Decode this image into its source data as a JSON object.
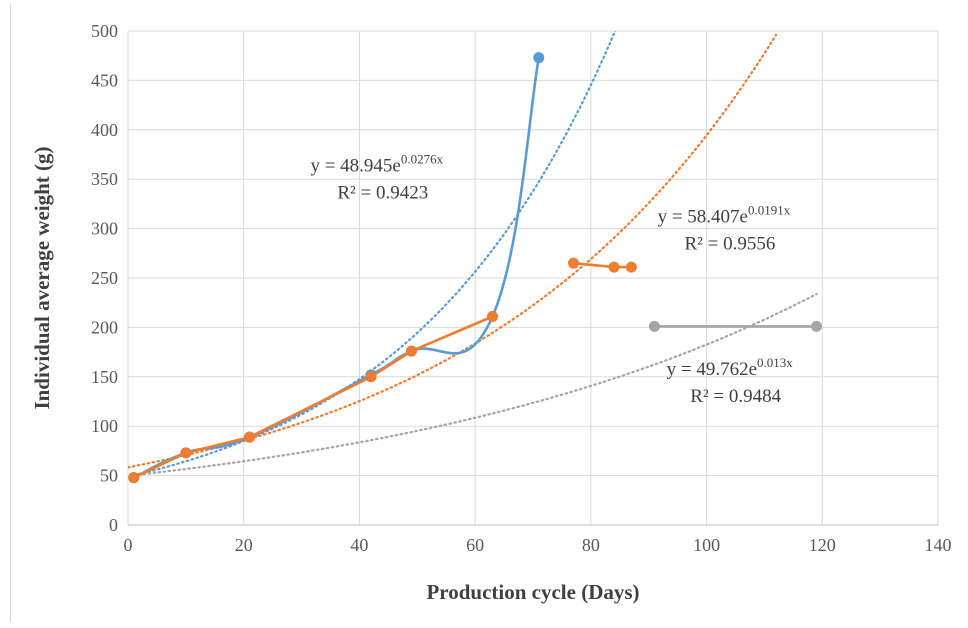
{
  "chart_data": {
    "type": "scatter",
    "title": "",
    "xlabel": "Production cycle (Days)",
    "ylabel": "Individual average weight (g)",
    "xlim": [
      0,
      140
    ],
    "ylim": [
      0,
      500
    ],
    "xticks": [
      0,
      20,
      40,
      60,
      80,
      100,
      120,
      140
    ],
    "yticks": [
      0,
      50,
      100,
      150,
      200,
      250,
      300,
      350,
      400,
      450,
      500
    ],
    "grid": true,
    "legend": "none",
    "series": [
      {
        "color": "#5b9bd5",
        "line": "smooth",
        "points": [
          [
            1,
            48
          ],
          [
            10,
            73
          ],
          [
            21,
            89
          ],
          [
            42,
            152
          ],
          [
            49,
            176
          ],
          [
            63,
            211
          ],
          [
            71,
            473
          ]
        ],
        "trend": {
          "a": 48.945,
          "b": 0.0276,
          "x_start": 1,
          "x_end": 84.5
        }
      },
      {
        "color": "#ed7d31",
        "line": "straight",
        "segments": [
          [
            [
              1,
              48
            ],
            [
              10,
              73
            ],
            [
              21,
              89
            ],
            [
              42,
              150
            ],
            [
              49,
              176
            ],
            [
              63,
              211
            ]
          ],
          [
            [
              77,
              265
            ],
            [
              84,
              261
            ],
            [
              87,
              261
            ]
          ]
        ],
        "trend": {
          "a": 58.407,
          "b": 0.0191,
          "x_start": 0,
          "x_end": 112
        }
      },
      {
        "color": "#a5a5a5",
        "line": "straight",
        "segments": [
          [
            [
              1,
              48
            ]
          ],
          [
            [
              91,
              201
            ],
            [
              119,
              201
            ]
          ]
        ],
        "trend": {
          "a": 49.762,
          "b": 0.013,
          "x_start": 1,
          "x_end": 119
        }
      }
    ],
    "annotations": [
      {
        "id": "blue",
        "base": "y = 48.945e",
        "exp": "0.0276x",
        "r2": "R² = 0.9423",
        "x": 43,
        "y": 358
      },
      {
        "id": "orange",
        "base": "y = 58.407e",
        "exp": "0.0191x",
        "r2": "R² = 0.9556",
        "x": 103,
        "y": 306
      },
      {
        "id": "gray",
        "base": "y = 49.762e",
        "exp": "0.013x",
        "r2": "R² = 0.9484",
        "x": 104,
        "y": 152
      }
    ]
  }
}
